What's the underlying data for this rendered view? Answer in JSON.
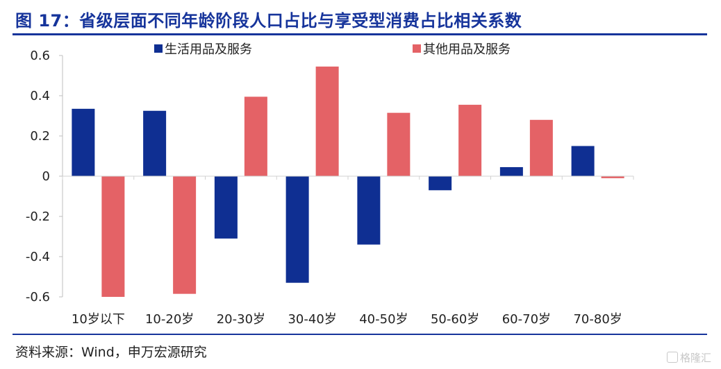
{
  "header": {
    "title": "图 17：省级层面不同年龄阶段人口占比与享受型消费占比相关系数"
  },
  "footer": {
    "source": "资料来源：Wind，申万宏源研究",
    "watermark": "格隆汇"
  },
  "chart_data": {
    "type": "bar",
    "title": "图 17：省级层面不同年龄阶段人口占比与享受型消费占比相关系数",
    "xlabel": "",
    "ylabel": "",
    "categories": [
      "10岁以下",
      "10-20岁",
      "20-30岁",
      "30-40岁",
      "40-50岁",
      "50-60岁",
      "60-70岁",
      "70-80岁"
    ],
    "series": [
      {
        "name": "生活用品及服务",
        "color": "#0f2f92",
        "values": [
          0.335,
          0.325,
          -0.31,
          -0.53,
          -0.34,
          -0.07,
          0.045,
          0.15
        ]
      },
      {
        "name": "其他用品及服务",
        "color": "#e46266",
        "values": [
          -0.6,
          -0.585,
          0.395,
          0.545,
          0.315,
          0.355,
          0.28,
          -0.01
        ]
      }
    ],
    "yticks": [
      "0.6",
      "0.4",
      "0.2",
      "0",
      "-0.2",
      "-0.4",
      "-0.6"
    ],
    "ylim": [
      -0.6,
      0.6
    ],
    "grid": false,
    "legend": "top"
  }
}
